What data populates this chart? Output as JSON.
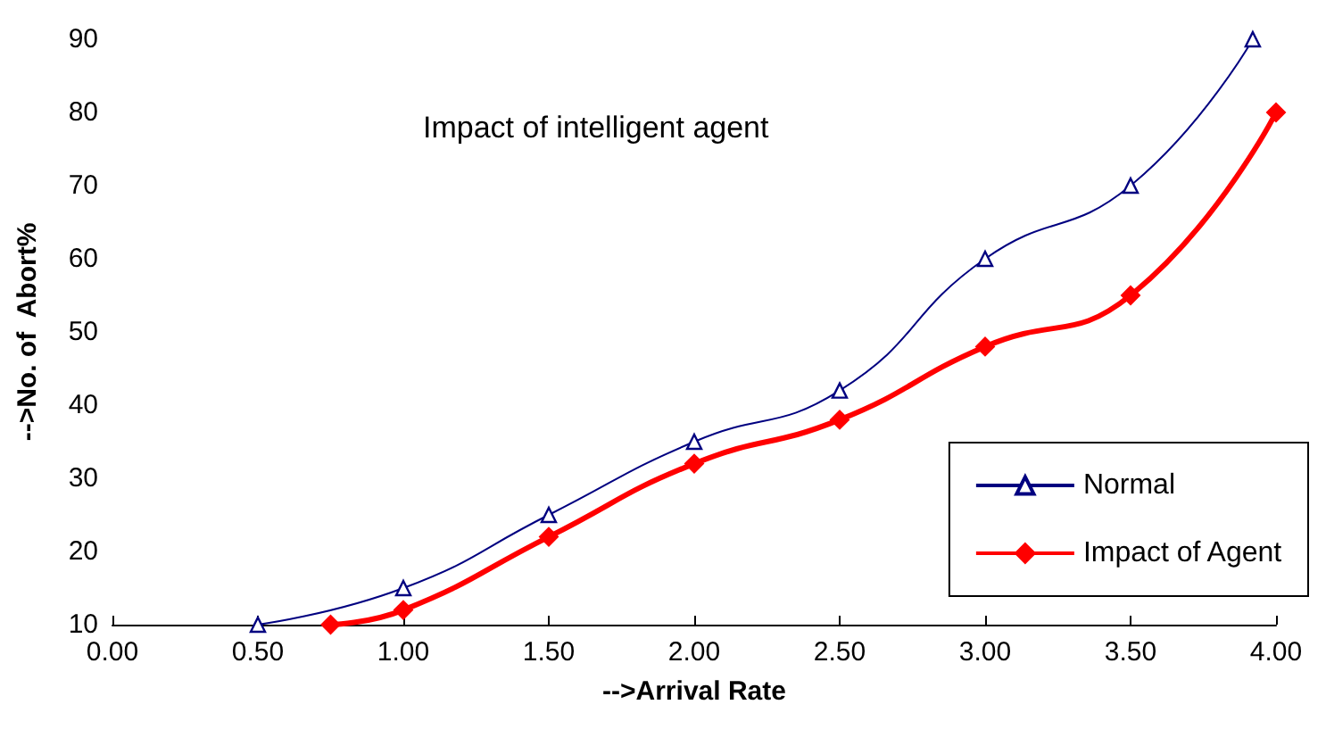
{
  "chart_data": {
    "type": "line",
    "title": "Impact of intelligent agent",
    "xlabel": "-->Arrival Rate",
    "ylabel": "-->No. of  Abort%",
    "xlim": [
      0,
      4
    ],
    "xticks": [
      {
        "value": 0,
        "label": "0.00"
      },
      {
        "value": 0.5,
        "label": "0.50"
      },
      {
        "value": 1,
        "label": "1.00"
      },
      {
        "value": 1.5,
        "label": "1.50"
      },
      {
        "value": 2,
        "label": "2.00"
      },
      {
        "value": 2.5,
        "label": "2.50"
      },
      {
        "value": 3,
        "label": "3.00"
      },
      {
        "value": 3.5,
        "label": "3.50"
      },
      {
        "value": 4,
        "label": "4.00"
      }
    ],
    "ylim": [
      10,
      90
    ],
    "yticks": [
      10,
      20,
      30,
      40,
      50,
      60,
      70,
      80,
      90
    ],
    "grid": false,
    "legend": "bottom right",
    "series": [
      {
        "name": "Normal",
        "color": "#000080",
        "marker": "triangle",
        "x": [
          0.5,
          1,
          1.5,
          2,
          2.5,
          3,
          3.5,
          3.92
        ],
        "values": [
          10,
          15,
          25,
          35,
          42,
          60,
          70,
          90
        ]
      },
      {
        "name": "Impact of Agent",
        "color": "#ff0000",
        "marker": "diamond",
        "x": [
          0.75,
          1,
          1.5,
          2,
          2.5,
          3,
          3.5,
          4
        ],
        "values": [
          10,
          12,
          22,
          32,
          38,
          48,
          55,
          80
        ]
      }
    ]
  }
}
